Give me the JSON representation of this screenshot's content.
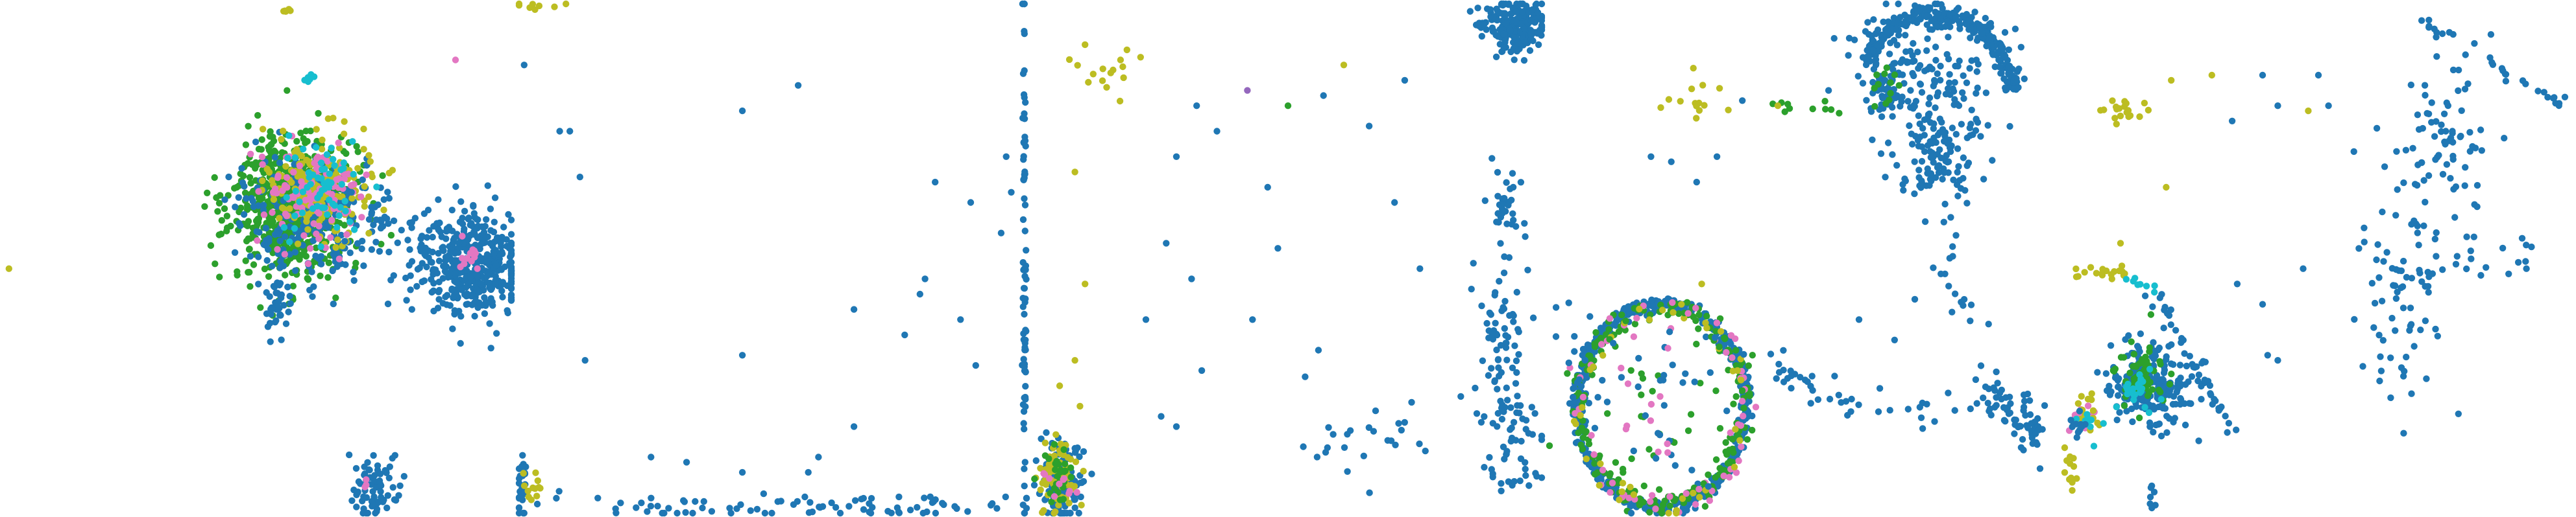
{
  "figure": {
    "panel_count": 5,
    "axes_visible": false,
    "background": "#ffffff"
  },
  "palette": {
    "blue": "#1f77b4",
    "green": "#2ca02c",
    "olive": "#bcbd22",
    "pink": "#e377c2",
    "cyan": "#17becf",
    "purple": "#9467bd"
  },
  "chart_data": [
    {
      "type": "scatter",
      "title": "",
      "xlabel": "",
      "ylabel": "",
      "grid": false,
      "xlim": [
        0,
        100
      ],
      "ylim": [
        0,
        100
      ],
      "clusters": [
        {
          "color": "green",
          "cx": 57,
          "cy": 40,
          "sx": 6,
          "sy": 7,
          "n": 700
        },
        {
          "color": "blue",
          "cx": 62,
          "cy": 42,
          "sx": 8,
          "sy": 6,
          "n": 260
        },
        {
          "color": "olive",
          "cx": 62,
          "cy": 36,
          "sx": 5,
          "sy": 5,
          "n": 180
        },
        {
          "color": "pink",
          "cx": 61,
          "cy": 38,
          "sx": 5,
          "sy": 5,
          "n": 110
        },
        {
          "color": "cyan",
          "cx": 63,
          "cy": 36,
          "sx": 4,
          "sy": 5,
          "n": 60
        },
        {
          "color": "blue",
          "cx": 92,
          "cy": 51,
          "sx": 6,
          "sy": 5,
          "n": 420
        },
        {
          "color": "pink",
          "cx": 91,
          "cy": 50,
          "sx": 2,
          "sy": 2,
          "n": 12
        },
        {
          "color": "blue",
          "cx": 54,
          "cy": 59,
          "sx": 1.2,
          "sy": 4,
          "n": 40
        },
        {
          "color": "blue",
          "cx": 73,
          "cy": 95,
          "sx": 2.5,
          "sy": 4,
          "n": 70
        },
        {
          "color": "cyan",
          "cx": 60,
          "cy": 14,
          "sx": 0.7,
          "sy": 0.7,
          "n": 6
        },
        {
          "color": "pink",
          "cx": 71,
          "cy": 94,
          "sx": 0.4,
          "sy": 0.4,
          "n": 3
        },
        {
          "color": "olive",
          "cx": 56,
          "cy": 1,
          "sx": 0.8,
          "sy": 0.6,
          "n": 5
        }
      ],
      "points": [
        {
          "x": 89,
          "y": 11,
          "color": "pink"
        },
        {
          "x": 1,
          "y": 52,
          "color": "olive"
        },
        {
          "x": 80,
          "y": 43,
          "color": "blue"
        }
      ]
    },
    {
      "type": "scatter",
      "title": "",
      "xlabel": "",
      "ylabel": "",
      "grid": false,
      "xlim": [
        0,
        100
      ],
      "ylim": [
        0,
        100
      ],
      "clusters": [
        {
          "color": "blue",
          "cx": 99.6,
          "cy": 50,
          "sx": 0.2,
          "sy": 30,
          "n": 80
        },
        {
          "color": "blue",
          "cx": 50,
          "cy": 98.5,
          "sx": 30,
          "sy": 1.2,
          "n": 90
        },
        {
          "color": "blue",
          "cx": 0.5,
          "cy": 95,
          "sx": 0.5,
          "sy": 4,
          "n": 25
        },
        {
          "color": "olive",
          "cx": 3,
          "cy": 95,
          "sx": 1.5,
          "sy": 2,
          "n": 12
        },
        {
          "color": "olive",
          "cx": 5,
          "cy": 0.5,
          "sx": 3,
          "sy": 0.4,
          "n": 8
        }
      ],
      "points": [
        {
          "x": 1,
          "y": 12,
          "color": "blue"
        },
        {
          "x": 8,
          "y": 25,
          "color": "blue"
        },
        {
          "x": 10,
          "y": 25,
          "color": "blue"
        },
        {
          "x": 12,
          "y": 34,
          "color": "blue"
        },
        {
          "x": 44,
          "y": 21,
          "color": "blue"
        },
        {
          "x": 55,
          "y": 16,
          "color": "blue"
        },
        {
          "x": 13,
          "y": 70,
          "color": "blue"
        },
        {
          "x": 44,
          "y": 69,
          "color": "blue"
        },
        {
          "x": 66,
          "y": 60,
          "color": "blue"
        },
        {
          "x": 76,
          "y": 65,
          "color": "blue"
        },
        {
          "x": 80,
          "y": 54,
          "color": "blue"
        },
        {
          "x": 87,
          "y": 62,
          "color": "blue"
        },
        {
          "x": 90,
          "y": 71,
          "color": "blue"
        },
        {
          "x": 79,
          "y": 57,
          "color": "blue"
        },
        {
          "x": 82,
          "y": 35,
          "color": "blue"
        },
        {
          "x": 89,
          "y": 39,
          "color": "blue"
        },
        {
          "x": 95,
          "y": 45,
          "color": "blue"
        },
        {
          "x": 96,
          "y": 30,
          "color": "blue"
        },
        {
          "x": 97,
          "y": 37,
          "color": "blue"
        },
        {
          "x": 26,
          "y": 89,
          "color": "blue"
        },
        {
          "x": 33,
          "y": 90,
          "color": "blue"
        },
        {
          "x": 44,
          "y": 92,
          "color": "blue"
        },
        {
          "x": 57,
          "y": 92,
          "color": "blue"
        },
        {
          "x": 59,
          "y": 89,
          "color": "blue"
        },
        {
          "x": 20,
          "y": 98,
          "color": "blue"
        },
        {
          "x": 66,
          "y": 83,
          "color": "blue"
        }
      ]
    },
    {
      "type": "scatter",
      "title": "",
      "xlabel": "",
      "ylabel": "",
      "grid": false,
      "xlim": [
        0,
        100
      ],
      "ylim": [
        0,
        100
      ],
      "clusters": [
        {
          "color": "blue",
          "cx": 95,
          "cy": 4,
          "sx": 3,
          "sy": 2.5,
          "n": 240
        },
        {
          "color": "blue",
          "cx": 5,
          "cy": 94,
          "sx": 2,
          "sy": 4,
          "n": 130
        },
        {
          "color": "olive",
          "cx": 5,
          "cy": 93,
          "sx": 1.8,
          "sy": 3.5,
          "n": 80
        },
        {
          "color": "green",
          "cx": 5,
          "cy": 93,
          "sx": 1.5,
          "sy": 3,
          "n": 30
        },
        {
          "color": "pink",
          "cx": 5,
          "cy": 94,
          "sx": 1.5,
          "sy": 2,
          "n": 10
        },
        {
          "color": "blue",
          "cx": 92,
          "cy": 70,
          "sx": 2.5,
          "sy": 12,
          "n": 90
        },
        {
          "color": "blue",
          "cx": 93,
          "cy": 40,
          "sx": 2,
          "sy": 5,
          "n": 30
        },
        {
          "color": "blue",
          "cx": 95,
          "cy": 88,
          "sx": 3,
          "sy": 5,
          "n": 35
        },
        {
          "color": "olive",
          "cx": 13,
          "cy": 12,
          "sx": 4,
          "sy": 5,
          "n": 14
        },
        {
          "color": "blue",
          "cx": 65,
          "cy": 85,
          "sx": 7,
          "sy": 4,
          "n": 25
        }
      ],
      "points": [
        {
          "x": 8,
          "y": 33,
          "color": "olive"
        },
        {
          "x": 10,
          "y": 55,
          "color": "olive"
        },
        {
          "x": 5,
          "y": 75,
          "color": "olive"
        },
        {
          "x": 8,
          "y": 70,
          "color": "olive"
        },
        {
          "x": 9,
          "y": 79,
          "color": "olive"
        },
        {
          "x": 42,
          "y": 17,
          "color": "purple"
        },
        {
          "x": 50,
          "y": 20,
          "color": "green"
        },
        {
          "x": 57,
          "y": 18,
          "color": "blue"
        },
        {
          "x": 61,
          "y": 12,
          "color": "olive"
        },
        {
          "x": 73,
          "y": 15,
          "color": "blue"
        },
        {
          "x": 28,
          "y": 30,
          "color": "blue"
        },
        {
          "x": 32,
          "y": 20,
          "color": "blue"
        },
        {
          "x": 36,
          "y": 25,
          "color": "blue"
        },
        {
          "x": 26,
          "y": 47,
          "color": "blue"
        },
        {
          "x": 31,
          "y": 54,
          "color": "blue"
        },
        {
          "x": 46,
          "y": 36,
          "color": "blue"
        },
        {
          "x": 48,
          "y": 48,
          "color": "blue"
        },
        {
          "x": 43,
          "y": 62,
          "color": "blue"
        },
        {
          "x": 66,
          "y": 24,
          "color": "blue"
        },
        {
          "x": 71,
          "y": 39,
          "color": "blue"
        },
        {
          "x": 76,
          "y": 52,
          "color": "blue"
        },
        {
          "x": 56,
          "y": 68,
          "color": "blue"
        },
        {
          "x": 22,
          "y": 62,
          "color": "blue"
        },
        {
          "x": 33,
          "y": 72,
          "color": "blue"
        },
        {
          "x": 28,
          "y": 83,
          "color": "blue"
        },
        {
          "x": 25,
          "y": 81,
          "color": "blue"
        },
        {
          "x": 17,
          "y": 11,
          "color": "olive"
        },
        {
          "x": 10,
          "y": 8,
          "color": "olive"
        }
      ]
    },
    {
      "type": "scatter",
      "title": "",
      "xlabel": "",
      "ylabel": "",
      "grid": false,
      "xlim": [
        0,
        100
      ],
      "ylim": [
        0,
        100
      ],
      "rings": [
        {
          "color": "blue",
          "cx": 22,
          "cy": 79,
          "rx": 16.5,
          "ry": 20,
          "n": 520,
          "spread": 0.8
        },
        {
          "color": "green",
          "cx": 22,
          "cy": 79,
          "rx": 16,
          "ry": 19.5,
          "n": 200,
          "spread": 1.2
        },
        {
          "color": "pink",
          "cx": 22,
          "cy": 79,
          "rx": 16,
          "ry": 19.5,
          "n": 60,
          "spread": 1.5
        },
        {
          "color": "olive",
          "cx": 22,
          "cy": 79,
          "rx": 16,
          "ry": 19.5,
          "n": 40,
          "spread": 1.5
        },
        {
          "color": "blue",
          "cx": 76,
          "cy": 17,
          "rx": 15,
          "ry": 15,
          "n": 260,
          "spread": 0.9,
          "arc": [
            200,
            360
          ]
        }
      ],
      "clusters": [
        {
          "color": "green",
          "cx": 22,
          "cy": 79,
          "sx": 8,
          "sy": 9,
          "n": 35
        },
        {
          "color": "blue",
          "cx": 22,
          "cy": 79,
          "sx": 8,
          "sy": 9,
          "n": 30
        },
        {
          "color": "pink",
          "cx": 22,
          "cy": 79,
          "sx": 8,
          "sy": 9,
          "n": 12
        },
        {
          "color": "blue",
          "cx": 75,
          "cy": 14,
          "sx": 7,
          "sy": 6,
          "n": 150
        },
        {
          "color": "blue",
          "cx": 77,
          "cy": 30,
          "sx": 5,
          "sy": 4,
          "n": 110
        },
        {
          "color": "blue",
          "cx": 66,
          "cy": 17,
          "sx": 2,
          "sy": 2,
          "n": 40
        },
        {
          "color": "green",
          "cx": 66,
          "cy": 16,
          "sx": 1.5,
          "sy": 1.5,
          "n": 12
        },
        {
          "color": "olive",
          "cx": 27,
          "cy": 19,
          "sx": 4,
          "sy": 3,
          "n": 14
        },
        {
          "color": "blue",
          "cx": 95,
          "cy": 83,
          "sx": 1.5,
          "sy": 3,
          "n": 25
        }
      ],
      "lines": [
        {
          "color": "blue",
          "from": [
            40,
            70
          ],
          "to": [
            62,
            79
          ],
          "n": 30,
          "jitter": 1.5
        },
        {
          "color": "blue",
          "from": [
            62,
            79
          ],
          "to": [
            95,
            80
          ],
          "n": 25,
          "jitter": 1.5
        },
        {
          "color": "blue",
          "from": [
            74,
            40
          ],
          "to": [
            90,
            80
          ],
          "n": 35,
          "jitter": 2
        },
        {
          "color": "blue",
          "from": [
            90,
            80
          ],
          "to": [
            96,
            88
          ],
          "n": 15,
          "jitter": 1
        },
        {
          "color": "blue",
          "from": [
            2,
            58
          ],
          "to": [
            10,
            80
          ],
          "n": 14,
          "jitter": 2
        },
        {
          "color": "green",
          "from": [
            40,
            21
          ],
          "to": [
            60,
            20
          ],
          "n": 10,
          "jitter": 1.2
        }
      ],
      "points": [
        {
          "x": 20,
          "y": 30,
          "color": "blue"
        },
        {
          "x": 24,
          "y": 31,
          "color": "blue"
        },
        {
          "x": 29,
          "y": 35,
          "color": "blue"
        },
        {
          "x": 33,
          "y": 30,
          "color": "blue"
        },
        {
          "x": 26,
          "y": 59,
          "color": "olive"
        },
        {
          "x": 30,
          "y": 55,
          "color": "olive"
        },
        {
          "x": 38,
          "y": 19,
          "color": "blue"
        },
        {
          "x": 45,
          "y": 20,
          "color": "olive"
        },
        {
          "x": 55,
          "y": 17,
          "color": "blue"
        },
        {
          "x": 61,
          "y": 62,
          "color": "blue"
        },
        {
          "x": 68,
          "y": 66,
          "color": "blue"
        },
        {
          "x": 72,
          "y": 58,
          "color": "blue"
        }
      ]
    },
    {
      "type": "scatter",
      "title": "",
      "xlabel": "",
      "ylabel": "",
      "grid": false,
      "xlim": [
        0,
        100
      ],
      "ylim": [
        0,
        100
      ],
      "clusters": [
        {
          "color": "blue",
          "cx": 17,
          "cy": 75,
          "sx": 4,
          "sy": 4,
          "n": 220
        },
        {
          "color": "green",
          "cx": 15,
          "cy": 73,
          "sx": 2,
          "sy": 2.5,
          "n": 70
        },
        {
          "color": "cyan",
          "cx": 14,
          "cy": 75,
          "sx": 2,
          "sy": 2,
          "n": 25
        },
        {
          "color": "pink",
          "cx": 4,
          "cy": 81,
          "sx": 1.5,
          "sy": 2,
          "n": 16
        },
        {
          "color": "olive",
          "cx": 4,
          "cy": 80,
          "sx": 1.5,
          "sy": 2,
          "n": 14
        },
        {
          "color": "cyan",
          "cx": 5,
          "cy": 82,
          "sx": 1.2,
          "sy": 1.5,
          "n": 12
        },
        {
          "color": "blue",
          "cx": 3,
          "cy": 83,
          "sx": 1.2,
          "sy": 1.5,
          "n": 12
        },
        {
          "color": "olive",
          "cx": 1,
          "cy": 91,
          "sx": 1.2,
          "sy": 2,
          "n": 12
        },
        {
          "color": "olive",
          "cx": 11,
          "cy": 21,
          "sx": 3,
          "sy": 1.2,
          "n": 18
        },
        {
          "color": "blue",
          "cx": 75,
          "cy": 30,
          "sx": 5,
          "sy": 8,
          "n": 80
        },
        {
          "color": "blue",
          "cx": 66,
          "cy": 60,
          "sx": 4,
          "sy": 12,
          "n": 60
        },
        {
          "color": "blue",
          "cx": 17,
          "cy": 97,
          "sx": 0.4,
          "sy": 2,
          "n": 6
        }
      ],
      "lines": [
        {
          "color": "blue",
          "from": [
            70,
            3
          ],
          "to": [
            98,
            20
          ],
          "n": 30,
          "jitter": 0.8
        },
        {
          "color": "blue",
          "from": [
            17,
            56
          ],
          "to": [
            33,
            83
          ],
          "n": 40,
          "jitter": 0.8
        },
        {
          "color": "olive",
          "from": [
            2,
            53
          ],
          "to": [
            12,
            53
          ],
          "n": 18,
          "jitter": 0.6
        },
        {
          "color": "cyan",
          "from": [
            12,
            54
          ],
          "to": [
            18,
            57
          ],
          "n": 8,
          "jitter": 0.5
        },
        {
          "color": "blue",
          "from": [
            66,
            55
          ],
          "to": [
            95,
            48
          ],
          "n": 25,
          "jitter": 2
        }
      ],
      "points": [
        {
          "x": 11,
          "y": 22,
          "color": "olive"
        },
        {
          "x": 21,
          "y": 15,
          "color": "olive"
        },
        {
          "x": 29,
          "y": 14,
          "color": "olive"
        },
        {
          "x": 39,
          "y": 14,
          "color": "blue"
        },
        {
          "x": 42,
          "y": 20,
          "color": "blue"
        },
        {
          "x": 48,
          "y": 21,
          "color": "olive"
        },
        {
          "x": 50,
          "y": 14,
          "color": "blue"
        },
        {
          "x": 52,
          "y": 20,
          "color": "blue"
        },
        {
          "x": 57,
          "y": 29,
          "color": "blue"
        },
        {
          "x": 59,
          "y": 44,
          "color": "blue"
        },
        {
          "x": 33,
          "y": 23,
          "color": "blue"
        },
        {
          "x": 11,
          "y": 47,
          "color": "olive"
        },
        {
          "x": 17,
          "y": 61,
          "color": "green"
        },
        {
          "x": 20,
          "y": 36,
          "color": "olive"
        },
        {
          "x": 39,
          "y": 59,
          "color": "blue"
        },
        {
          "x": 42,
          "y": 70,
          "color": "blue"
        },
        {
          "x": 34,
          "y": 55,
          "color": "blue"
        },
        {
          "x": 47,
          "y": 52,
          "color": "blue"
        },
        {
          "x": 84,
          "y": 6,
          "color": "blue"
        },
        {
          "x": 17,
          "y": 95,
          "color": "blue"
        },
        {
          "x": 40,
          "y": 69,
          "color": "blue"
        },
        {
          "x": 91,
          "y": 52,
          "color": "blue"
        }
      ]
    }
  ]
}
